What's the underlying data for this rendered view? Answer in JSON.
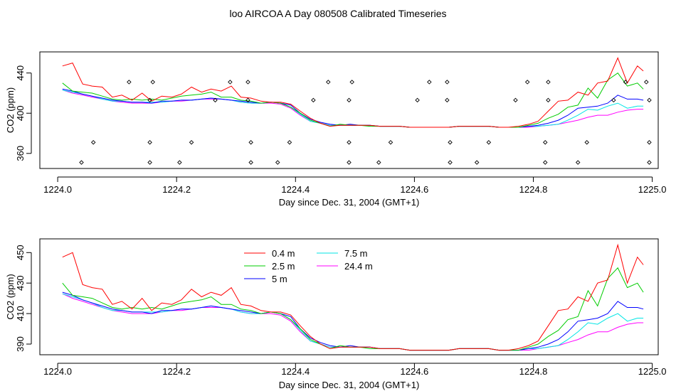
{
  "title": "loo AIRCOA A  Day 080508  Calibrated Timeseries",
  "chart_data": [
    {
      "type": "line",
      "xlabel": "Day since Dec. 31, 2004 (GMT+1)",
      "ylabel": "CO2 (ppm)",
      "xlim": [
        1223.97,
        1225.01
      ],
      "ylim": [
        345,
        461
      ],
      "xticks": [
        1224.0,
        1224.2,
        1224.4,
        1224.6,
        1224.8,
        1225.0
      ],
      "xtick_labels": [
        "1224.0",
        "1224.2",
        "1224.4",
        "1224.6",
        "1224.8",
        "1225.0"
      ],
      "yticks": [
        360,
        400,
        440
      ],
      "ytick_labels": [
        "360",
        "400",
        "440"
      ],
      "series": [
        {
          "name": "0.4 m",
          "color": "#ff0000"
        },
        {
          "name": "2.5 m",
          "color": "#00cc00"
        },
        {
          "name": "5 m",
          "color": "#0000ff"
        },
        {
          "name": "7.5 m",
          "color": "#00e5e5"
        },
        {
          "name": "24.4 m",
          "color": "#ff00ff"
        }
      ],
      "markers": {
        "shape": "diamond",
        "points": [
          [
            1224.04,
            351
          ],
          [
            1224.06,
            371
          ],
          [
            1224.12,
            431
          ],
          [
            1224.155,
            413
          ],
          [
            1224.155,
            371
          ],
          [
            1224.155,
            351
          ],
          [
            1224.16,
            431
          ],
          [
            1224.205,
            351
          ],
          [
            1224.225,
            371
          ],
          [
            1224.265,
            413
          ],
          [
            1224.29,
            431
          ],
          [
            1224.32,
            431
          ],
          [
            1224.32,
            413
          ],
          [
            1224.325,
            371
          ],
          [
            1224.325,
            351
          ],
          [
            1224.37,
            351
          ],
          [
            1224.39,
            371
          ],
          [
            1224.43,
            413
          ],
          [
            1224.455,
            431
          ],
          [
            1224.49,
            413
          ],
          [
            1224.49,
            371
          ],
          [
            1224.49,
            351
          ],
          [
            1224.495,
            431
          ],
          [
            1224.54,
            351
          ],
          [
            1224.56,
            371
          ],
          [
            1224.605,
            413
          ],
          [
            1224.625,
            431
          ],
          [
            1224.655,
            431
          ],
          [
            1224.655,
            413
          ],
          [
            1224.66,
            371
          ],
          [
            1224.66,
            351
          ],
          [
            1224.705,
            351
          ],
          [
            1224.725,
            371
          ],
          [
            1224.77,
            413
          ],
          [
            1224.79,
            431
          ],
          [
            1224.82,
            371
          ],
          [
            1224.82,
            351
          ],
          [
            1224.825,
            413
          ],
          [
            1224.825,
            431
          ],
          [
            1224.875,
            351
          ],
          [
            1224.89,
            371
          ],
          [
            1224.935,
            413
          ],
          [
            1224.955,
            431
          ],
          [
            1224.99,
            431
          ],
          [
            1224.995,
            413
          ],
          [
            1224.995,
            371
          ],
          [
            1224.995,
            351
          ]
        ]
      }
    },
    {
      "type": "line",
      "xlabel": "Day since Dec. 31, 2004 (GMT+1)",
      "ylabel": "CO2 (ppm)",
      "xlim": [
        1223.97,
        1225.01
      ],
      "ylim": [
        383,
        459
      ],
      "xticks": [
        1224.0,
        1224.2,
        1224.4,
        1224.6,
        1224.8,
        1225.0
      ],
      "xtick_labels": [
        "1224.0",
        "1224.2",
        "1224.4",
        "1224.6",
        "1224.8",
        "1225.0"
      ],
      "yticks": [
        390,
        410,
        430,
        450
      ],
      "ytick_labels": [
        "390",
        "410",
        "430",
        "450"
      ],
      "legend": "top-left, inside plot",
      "series": [
        {
          "name": "0.4 m",
          "color": "#ff0000"
        },
        {
          "name": "2.5 m",
          "color": "#00cc00"
        },
        {
          "name": "5 m",
          "color": "#0000ff"
        },
        {
          "name": "7.5 m",
          "color": "#00e5e5"
        },
        {
          "name": "24.4 m",
          "color": "#ff00ff"
        }
      ]
    }
  ],
  "timeseries": {
    "x": [
      1224.008,
      1224.025,
      1224.042,
      1224.058,
      1224.075,
      1224.092,
      1224.108,
      1224.125,
      1224.142,
      1224.158,
      1224.175,
      1224.192,
      1224.208,
      1224.225,
      1224.242,
      1224.258,
      1224.275,
      1224.292,
      1224.308,
      1224.325,
      1224.342,
      1224.358,
      1224.375,
      1224.392,
      1224.408,
      1224.425,
      1224.442,
      1224.458,
      1224.475,
      1224.492,
      1224.508,
      1224.525,
      1224.542,
      1224.558,
      1224.575,
      1224.592,
      1224.608,
      1224.625,
      1224.642,
      1224.658,
      1224.675,
      1224.692,
      1224.708,
      1224.725,
      1224.742,
      1224.758,
      1224.775,
      1224.792,
      1224.808,
      1224.825,
      1224.842,
      1224.858,
      1224.875,
      1224.892,
      1224.908,
      1224.925,
      1224.942,
      1224.958,
      1224.975,
      1224.985
    ],
    "values": [
      [
        447,
        450,
        429,
        427,
        426,
        416,
        418,
        413,
        420,
        412,
        417,
        416,
        419,
        426,
        421,
        424,
        422,
        427,
        416,
        415,
        412,
        411,
        411,
        409,
        402,
        395,
        390,
        387,
        388,
        388,
        388,
        388,
        387,
        387,
        387,
        386,
        386,
        386,
        386,
        386,
        387,
        387,
        387,
        387,
        386,
        386,
        387,
        389,
        392,
        402,
        412,
        413,
        421,
        418,
        430,
        432,
        455,
        430,
        447,
        442
      ],
      [
        430,
        422,
        421,
        420,
        417,
        414,
        413,
        414,
        413,
        414,
        413,
        415,
        417,
        418,
        419,
        421,
        416,
        416,
        413,
        412,
        410,
        411,
        410,
        406,
        400,
        393,
        390,
        387,
        389,
        388,
        388,
        387,
        387,
        387,
        387,
        386,
        386,
        386,
        386,
        386,
        387,
        387,
        387,
        387,
        386,
        386,
        386,
        388,
        390,
        395,
        399,
        406,
        408,
        425,
        415,
        433,
        440,
        427,
        430,
        424
      ],
      [
        424,
        422,
        419,
        417,
        415,
        413,
        412,
        411,
        411,
        410,
        412,
        412,
        413,
        413,
        414,
        415,
        414,
        413,
        412,
        411,
        410,
        411,
        410,
        408,
        400,
        394,
        391,
        389,
        388,
        389,
        388,
        388,
        387,
        387,
        387,
        386,
        386,
        386,
        386,
        386,
        387,
        387,
        387,
        387,
        386,
        386,
        386,
        387,
        388,
        390,
        393,
        398,
        405,
        406,
        407,
        410,
        418,
        414,
        414,
        413
      ],
      [
        423,
        421,
        419,
        417,
        414,
        412,
        412,
        411,
        411,
        411,
        411,
        412,
        413,
        413,
        414,
        415,
        414,
        413,
        411,
        410,
        410,
        411,
        410,
        406,
        399,
        392,
        390,
        388,
        388,
        388,
        388,
        388,
        387,
        387,
        387,
        386,
        386,
        386,
        386,
        386,
        387,
        387,
        387,
        387,
        386,
        386,
        386,
        387,
        387,
        388,
        389,
        393,
        398,
        404,
        403,
        407,
        410,
        405,
        407,
        407
      ],
      [
        423,
        420,
        418,
        416,
        414,
        412,
        411,
        410,
        410,
        410,
        411,
        412,
        412,
        413,
        414,
        414,
        414,
        413,
        411,
        410,
        410,
        410,
        409,
        405,
        398,
        392,
        390,
        388,
        388,
        388,
        388,
        388,
        387,
        387,
        387,
        386,
        386,
        386,
        386,
        386,
        387,
        387,
        387,
        387,
        386,
        386,
        386,
        386,
        387,
        388,
        389,
        391,
        393,
        396,
        398,
        398,
        401,
        403,
        404,
        404
      ]
    ]
  }
}
